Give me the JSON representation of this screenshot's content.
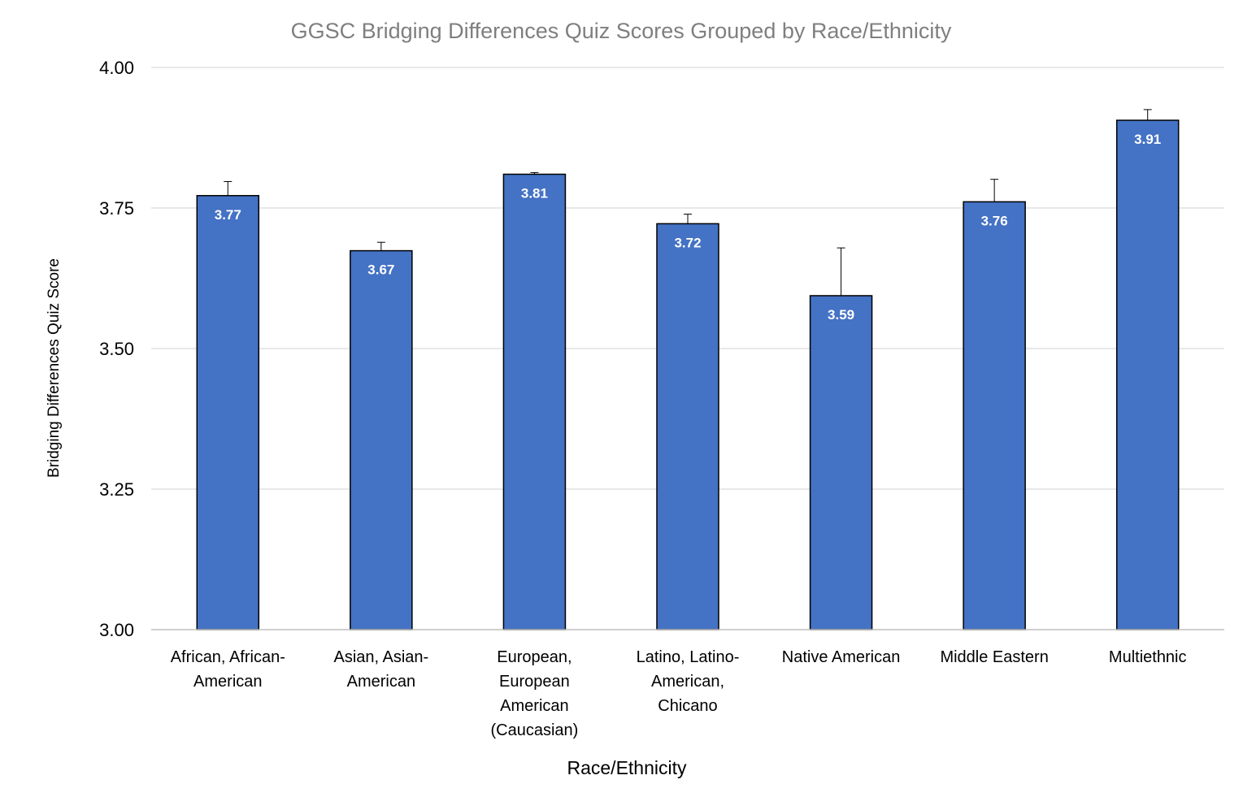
{
  "chart_data": {
    "type": "bar",
    "title": "GGSC Bridging Differences Quiz Scores Grouped by Race/Ethnicity",
    "xlabel": "Race/Ethnicity",
    "ylabel": "Bridging Differences Quiz Score",
    "ylim": [
      3.0,
      4.0
    ],
    "yticks": [
      "3.00",
      "3.25",
      "3.50",
      "3.75",
      "4.00"
    ],
    "ytick_values": [
      3.0,
      3.25,
      3.5,
      3.75,
      4.0
    ],
    "grid": true,
    "legend": "none",
    "bar_color": "#4472c4",
    "categories": [
      [
        "African, African-",
        "American"
      ],
      [
        "Asian, Asian-",
        "American"
      ],
      [
        "European,",
        "European",
        "American",
        "(Caucasian)"
      ],
      [
        "Latino, Latino-",
        "American,",
        "Chicano"
      ],
      [
        "Native American"
      ],
      [
        "Middle Eastern"
      ],
      [
        "Multiethnic"
      ]
    ],
    "values": [
      3.772,
      3.674,
      3.81,
      3.722,
      3.594,
      3.761,
      3.906
    ],
    "data_labels": [
      "3.77",
      "3.67",
      "3.81",
      "3.72",
      "3.59",
      "3.76",
      "3.91"
    ],
    "error_bars_upper": [
      0.025,
      0.015,
      0.003,
      0.017,
      0.085,
      0.04,
      0.019
    ]
  }
}
